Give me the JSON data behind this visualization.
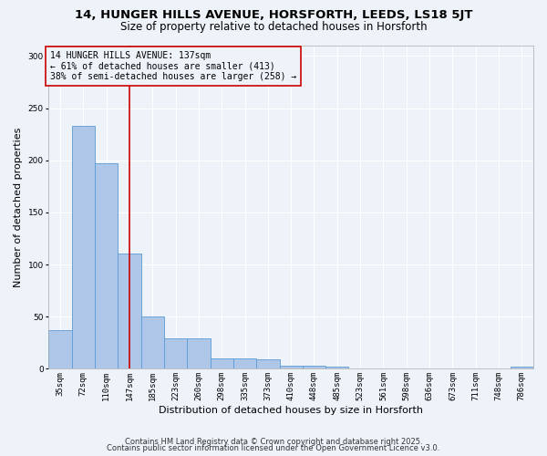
{
  "title_line1": "14, HUNGER HILLS AVENUE, HORSFORTH, LEEDS, LS18 5JT",
  "title_line2": "Size of property relative to detached houses in Horsforth",
  "xlabel": "Distribution of detached houses by size in Horsforth",
  "ylabel": "Number of detached properties",
  "categories": [
    "35sqm",
    "72sqm",
    "110sqm",
    "147sqm",
    "185sqm",
    "223sqm",
    "260sqm",
    "298sqm",
    "335sqm",
    "373sqm",
    "410sqm",
    "448sqm",
    "485sqm",
    "523sqm",
    "561sqm",
    "598sqm",
    "636sqm",
    "673sqm",
    "711sqm",
    "748sqm",
    "786sqm"
  ],
  "values": [
    37,
    233,
    197,
    111,
    50,
    29,
    29,
    10,
    10,
    9,
    3,
    3,
    2,
    0,
    0,
    0,
    0,
    0,
    0,
    0,
    2
  ],
  "bar_color": "#aec6e8",
  "bar_edgecolor": "#5b9bd5",
  "bar_linewidth": 0.6,
  "vline_x": 3,
  "vline_color": "#cc0000",
  "annotation_text": "14 HUNGER HILLS AVENUE: 137sqm\n← 61% of detached houses are smaller (413)\n38% of semi-detached houses are larger (258) →",
  "annotation_box_edgecolor": "#cc0000",
  "annotation_fontsize": 7,
  "ylim": [
    0,
    310
  ],
  "yticks": [
    0,
    50,
    100,
    150,
    200,
    250,
    300
  ],
  "background_color": "#eef2f9",
  "grid_color": "#ffffff",
  "title_fontsize": 9.5,
  "subtitle_fontsize": 8.5,
  "axis_label_fontsize": 8,
  "tick_fontsize": 6.5,
  "ylabel_fontsize": 8,
  "footer_text1": "Contains HM Land Registry data © Crown copyright and database right 2025.",
  "footer_text2": "Contains public sector information licensed under the Open Government Licence v3.0."
}
